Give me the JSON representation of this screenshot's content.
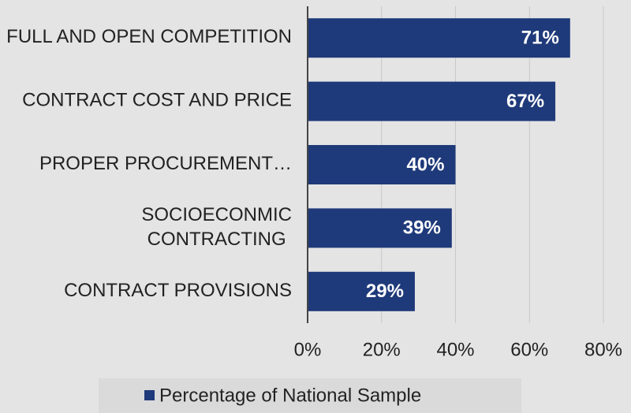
{
  "chart_data": {
    "type": "bar",
    "orientation": "horizontal",
    "categories": [
      "FULL AND OPEN COMPETITION",
      "CONTRACT COST AND PRICE",
      "PROPER PROCUREMENT…",
      "SOCIOECONMIC CONTRACTING",
      "CONTRACT PROVISIONS"
    ],
    "series": [
      {
        "name": "Percentage of National Sample",
        "color": "#1f3a7a",
        "values": [
          71,
          67,
          40,
          39,
          29
        ],
        "value_labels": [
          "71%",
          "67%",
          "40%",
          "39%",
          "29%"
        ]
      }
    ],
    "xlim": [
      0,
      80
    ],
    "xticks": [
      {
        "value": 0,
        "label": "0%"
      },
      {
        "value": 20,
        "label": "20%"
      },
      {
        "value": 40,
        "label": "40%"
      },
      {
        "value": 60,
        "label": "60%"
      },
      {
        "value": 80,
        "label": "80%"
      }
    ],
    "grid": true,
    "legend": "bottom"
  }
}
